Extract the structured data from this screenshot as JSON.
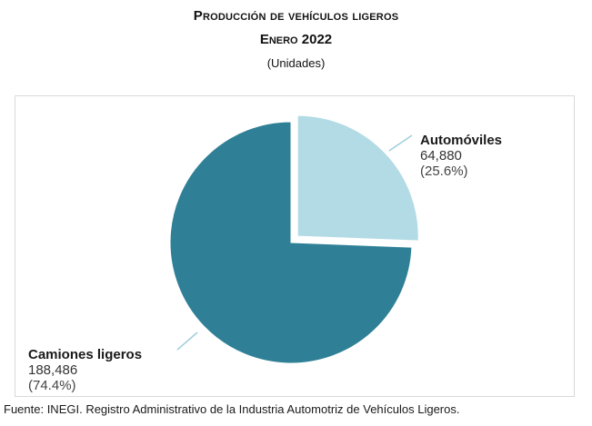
{
  "title": "Producción de vehículos ligeros",
  "subtitle": "Enero 2022",
  "units": "(Unidades)",
  "source": "Fuente: INEGI. Registro Administrativo de la Industria Automotriz de Vehículos Ligeros.",
  "colors": {
    "automoviles": "#b3dbe5",
    "camiones": "#2f8096",
    "leader": "#9fcfdc"
  },
  "chart_data": {
    "type": "pie",
    "title": "Producción de vehículos ligeros",
    "subtitle": "Enero 2022",
    "unit_label": "(Unidades)",
    "slices": [
      {
        "label": "Automóviles",
        "value": 64880,
        "value_label": "64,880",
        "percent_label": "(25.6%)",
        "percent": 25.6,
        "exploded": true
      },
      {
        "label": "Camiones ligeros",
        "value": 188486,
        "value_label": "188,486",
        "percent_label": "(74.4%)",
        "percent": 74.4,
        "exploded": false
      }
    ]
  }
}
